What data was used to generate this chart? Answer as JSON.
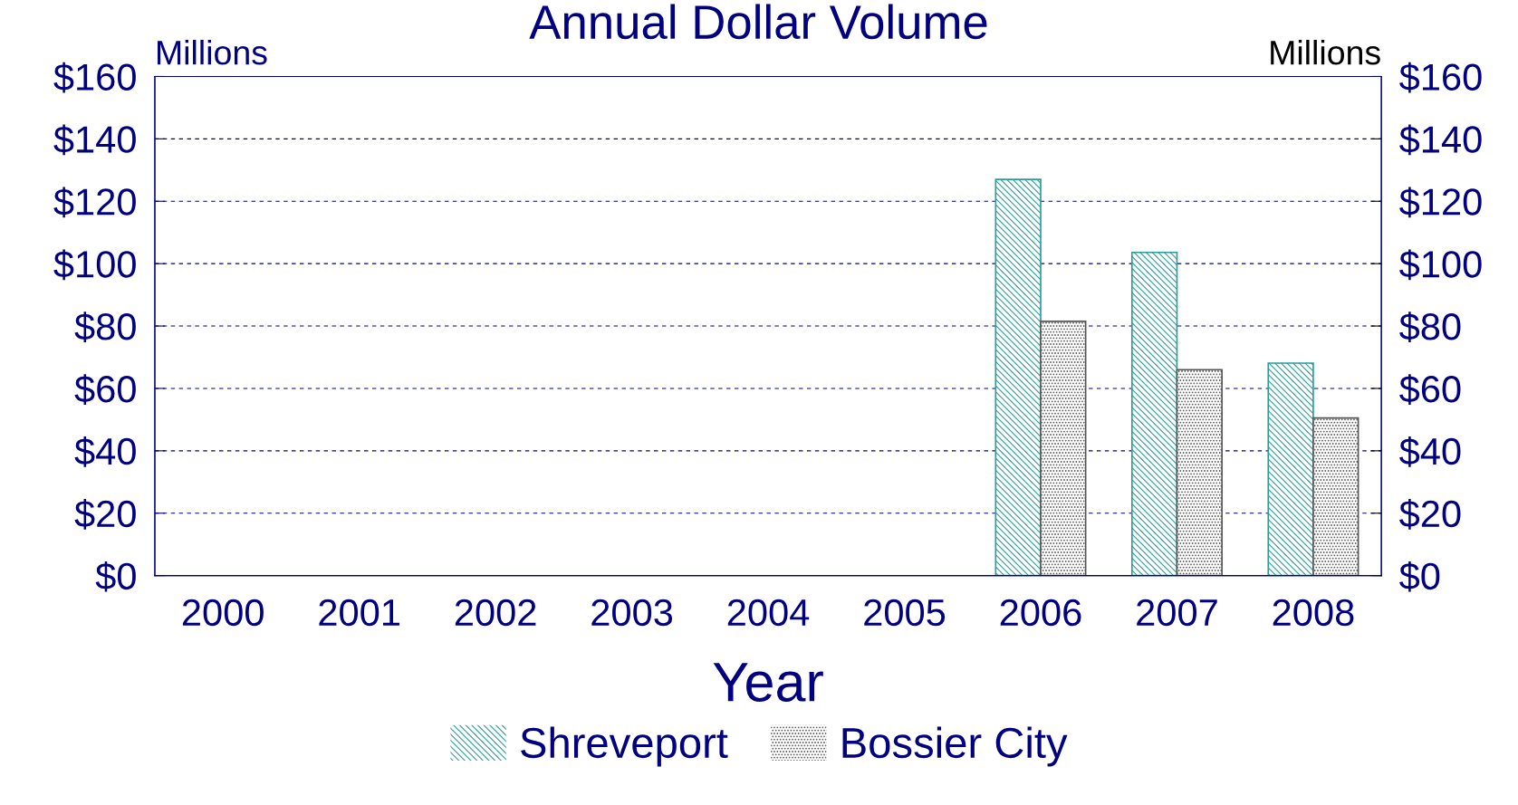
{
  "chart_data": {
    "type": "bar",
    "title": "Annual Dollar Volume",
    "xlabel": "Year",
    "ylabel": "Millions",
    "y2label": "Millions",
    "categories": [
      "2000",
      "2001",
      "2002",
      "2003",
      "2004",
      "2005",
      "2006",
      "2007",
      "2008"
    ],
    "series": [
      {
        "name": "Shreveport",
        "color": "#2a9d9a",
        "values": [
          null,
          null,
          null,
          null,
          null,
          null,
          127,
          103.6,
          68.1
        ]
      },
      {
        "name": "Bossier City",
        "color": "#555555",
        "values": [
          null,
          null,
          null,
          null,
          null,
          null,
          81.5,
          66,
          50.5
        ]
      }
    ],
    "ylim": [
      0,
      160
    ],
    "yticks": [
      {
        "value": 0,
        "label": "$0"
      },
      {
        "value": 20,
        "label": "$20"
      },
      {
        "value": 40,
        "label": "$40"
      },
      {
        "value": 60,
        "label": "$60"
      },
      {
        "value": 80,
        "label": "$80"
      },
      {
        "value": 100,
        "label": "$100"
      },
      {
        "value": 120,
        "label": "$120"
      },
      {
        "value": 140,
        "label": "$140"
      },
      {
        "value": 160,
        "label": "$160"
      }
    ],
    "y2lim": [
      0,
      160
    ],
    "y2ticks": [
      {
        "value": 0,
        "label": "$0"
      },
      {
        "value": 20,
        "label": "$20"
      },
      {
        "value": 40,
        "label": "$40"
      },
      {
        "value": 60,
        "label": "$60"
      },
      {
        "value": 80,
        "label": "$80"
      },
      {
        "value": 100,
        "label": "$100"
      },
      {
        "value": 120,
        "label": "$120"
      },
      {
        "value": 140,
        "label": "$140"
      },
      {
        "value": 160,
        "label": "$160"
      }
    ],
    "grid": "y",
    "line_style": "dashed",
    "legend": "bottom"
  }
}
